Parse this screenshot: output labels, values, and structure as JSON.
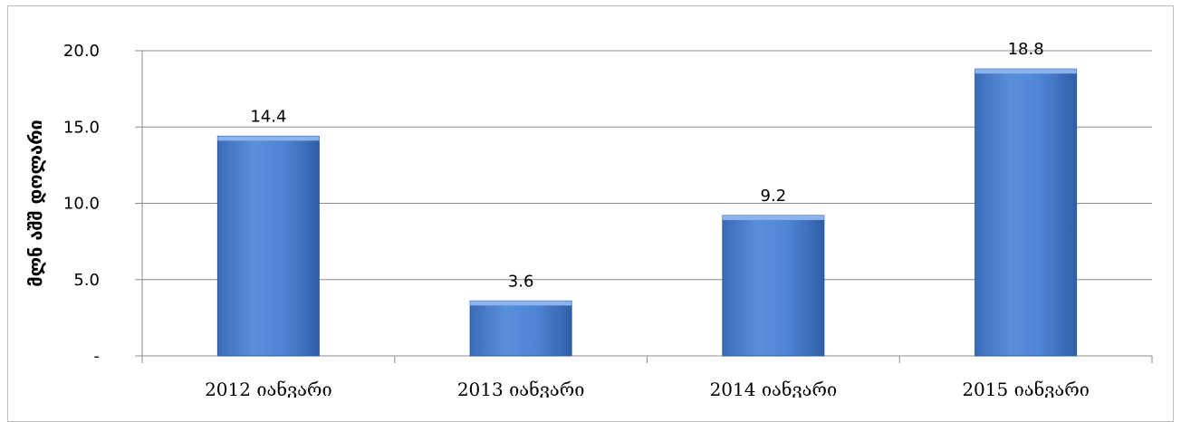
{
  "chart_data": {
    "type": "bar",
    "title": "",
    "xlabel": "",
    "ylabel": "მლნ აშშ დოლარი",
    "categories": [
      "2012 იანვარი",
      "2013 იანვარი",
      "2014 იანვარი",
      "2015 იანვარი"
    ],
    "values": [
      14.4,
      3.6,
      9.2,
      18.8
    ],
    "data_labels": [
      "14.4",
      "3.6",
      "9.2",
      "18.8"
    ],
    "ylim": [
      0,
      20
    ],
    "yticks": [
      0,
      5,
      10,
      15,
      20
    ],
    "ytick_labels": [
      "-",
      "5.0",
      "10.0",
      "15.0",
      "20.0"
    ],
    "grid": true,
    "legend": "none",
    "colors": {
      "bar": "#4a7ecf",
      "bar_light": "#6f9ee6",
      "bar_dark": "#2f5fa8",
      "gridline": "#8c8c8c",
      "axis": "#8c8c8c"
    }
  }
}
